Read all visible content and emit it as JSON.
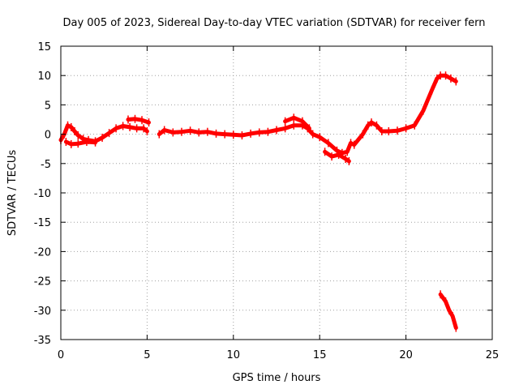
{
  "chart_data": {
    "type": "scatter",
    "title": "Day 005 of 2023, Sidereal Day-to-day VTEC variation (SDTVAR) for receiver fern",
    "xlabel": "GPS time / hours",
    "ylabel": "SDTVAR / TECUs",
    "xlim": [
      0,
      25
    ],
    "ylim": [
      -35,
      15
    ],
    "grid": true,
    "xticks": [
      0,
      5,
      10,
      15,
      20,
      25
    ],
    "yticks": [
      15,
      10,
      5,
      0,
      -5,
      -10,
      -15,
      -20,
      -25,
      -30,
      -35
    ],
    "series": [
      {
        "name": "SDTVAR",
        "color": "#ff0000",
        "segments": [
          [
            [
              0.0,
              -1.0
            ],
            [
              0.2,
              0.0
            ],
            [
              0.4,
              1.5
            ],
            [
              0.6,
              1.2
            ],
            [
              0.8,
              0.5
            ],
            [
              1.0,
              -0.2
            ],
            [
              1.3,
              -0.8
            ],
            [
              1.6,
              -1.0
            ],
            [
              2.0,
              -1.2
            ],
            [
              2.4,
              -0.6
            ],
            [
              2.8,
              0.2
            ],
            [
              3.2,
              1.0
            ],
            [
              3.6,
              1.4
            ],
            [
              4.0,
              1.2
            ],
            [
              4.4,
              1.0
            ],
            [
              4.8,
              1.0
            ],
            [
              5.0,
              0.5
            ]
          ],
          [
            [
              0.3,
              -1.3
            ],
            [
              0.6,
              -1.7
            ],
            [
              1.0,
              -1.6
            ],
            [
              1.5,
              -1.3
            ],
            [
              2.0,
              -1.4
            ]
          ],
          [
            [
              3.9,
              2.5
            ],
            [
              4.3,
              2.6
            ],
            [
              4.7,
              2.4
            ],
            [
              5.1,
              2.0
            ]
          ],
          [
            [
              5.7,
              0.0
            ],
            [
              6.0,
              0.7
            ],
            [
              6.5,
              0.3
            ],
            [
              7.0,
              0.4
            ],
            [
              7.5,
              0.6
            ],
            [
              8.0,
              0.3
            ],
            [
              8.5,
              0.4
            ],
            [
              9.0,
              0.1
            ],
            [
              9.5,
              0.0
            ],
            [
              10.0,
              -0.1
            ],
            [
              10.5,
              -0.2
            ],
            [
              11.0,
              0.1
            ],
            [
              11.5,
              0.3
            ],
            [
              12.0,
              0.4
            ],
            [
              12.5,
              0.7
            ],
            [
              13.0,
              1.0
            ],
            [
              13.5,
              1.5
            ],
            [
              14.0,
              1.5
            ],
            [
              14.3,
              1.0
            ],
            [
              14.6,
              0.0
            ],
            [
              15.0,
              -0.5
            ],
            [
              15.5,
              -1.5
            ],
            [
              16.0,
              -2.8
            ],
            [
              16.3,
              -3.2
            ],
            [
              16.6,
              -3.0
            ],
            [
              16.8,
              -1.5
            ],
            [
              17.0,
              -1.8
            ],
            [
              17.5,
              0.0
            ],
            [
              17.8,
              1.5
            ],
            [
              18.0,
              2.0
            ],
            [
              18.3,
              1.5
            ],
            [
              18.6,
              0.5
            ],
            [
              19.0,
              0.5
            ],
            [
              19.5,
              0.6
            ],
            [
              20.0,
              1.0
            ],
            [
              20.5,
              1.5
            ],
            [
              21.0,
              4.0
            ],
            [
              21.5,
              7.5
            ],
            [
              21.8,
              9.5
            ],
            [
              22.0,
              10.0
            ],
            [
              22.3,
              10.0
            ],
            [
              22.6,
              9.5
            ],
            [
              22.9,
              9.0
            ]
          ],
          [
            [
              13.0,
              2.2
            ],
            [
              13.5,
              2.8
            ],
            [
              14.0,
              2.2
            ],
            [
              14.4,
              1.0
            ]
          ],
          [
            [
              15.3,
              -3.0
            ],
            [
              15.7,
              -3.8
            ],
            [
              16.1,
              -3.5
            ],
            [
              16.5,
              -4.2
            ],
            [
              16.7,
              -4.6
            ]
          ],
          [
            [
              22.0,
              -27.3
            ],
            [
              22.3,
              -28.5
            ],
            [
              22.5,
              -30.0
            ],
            [
              22.7,
              -31.0
            ],
            [
              22.9,
              -33.0
            ]
          ]
        ]
      }
    ]
  }
}
